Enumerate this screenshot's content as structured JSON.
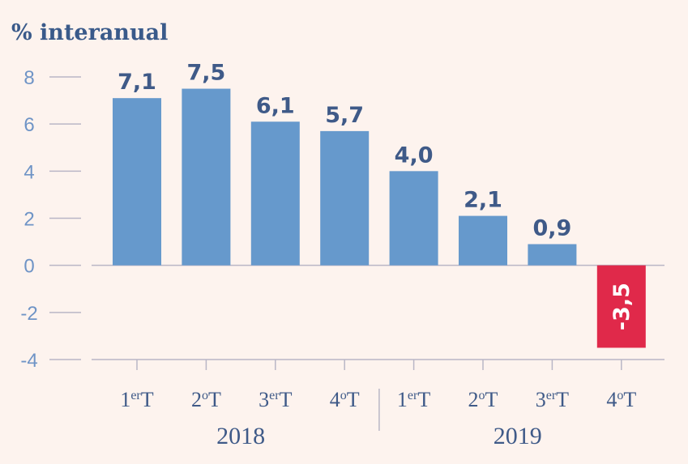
{
  "chart_data": {
    "type": "bar",
    "title": "% interanual",
    "categories": [
      {
        "main": "1",
        "sup": "er",
        "tail": "T"
      },
      {
        "main": "2",
        "sup": "o",
        "tail": "T"
      },
      {
        "main": "3",
        "sup": "er",
        "tail": "T"
      },
      {
        "main": "4",
        "sup": "o",
        "tail": "T"
      },
      {
        "main": "1",
        "sup": "er",
        "tail": "T"
      },
      {
        "main": "2",
        "sup": "o",
        "tail": "T"
      },
      {
        "main": "3",
        "sup": "er",
        "tail": "T"
      },
      {
        "main": "4",
        "sup": "o",
        "tail": "T"
      }
    ],
    "values": [
      7.1,
      7.5,
      6.1,
      5.7,
      4.0,
      2.1,
      0.9,
      -3.5
    ],
    "value_labels": [
      "7,1",
      "7,5",
      "6,1",
      "5,7",
      "4,0",
      "2,1",
      "0,9",
      "-3,5"
    ],
    "groups": [
      {
        "label": "2018",
        "span": [
          0,
          3
        ]
      },
      {
        "label": "2019",
        "span": [
          4,
          7
        ]
      }
    ],
    "yticks": [
      "8",
      "6",
      "4",
      "2",
      "0",
      "-2",
      "-4"
    ],
    "ytick_values": [
      8,
      6,
      4,
      2,
      0,
      -2,
      -4
    ],
    "ylim": [
      -4,
      8
    ],
    "grid": false,
    "colors": {
      "positive": "#6699cc",
      "negative": "#e0294a",
      "axis": "#b9b6c6",
      "tick_label": "#6f94c6",
      "text": "#3f5a88",
      "background": "#fdf3ee"
    }
  }
}
